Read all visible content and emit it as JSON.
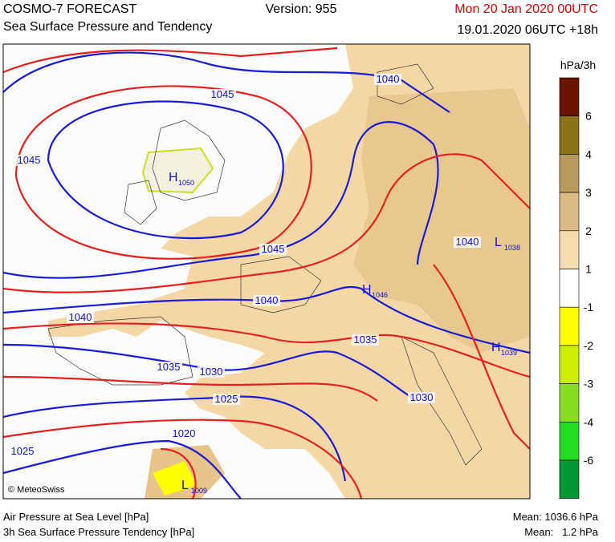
{
  "header": {
    "title": "COSMO-7 FORECAST",
    "subtitle": "Sea Surface Pressure and Tendency",
    "version": "Version: 955",
    "valid_time": "Mon 20 Jan 2020 00UTC",
    "run_time": "19.01.2020 06UTC +18h"
  },
  "map": {
    "isobar_labels": [
      "1040",
      "1045",
      "1045",
      "1045",
      "1040",
      "1040",
      "1040",
      "1035",
      "1035",
      "1030",
      "1025",
      "1030",
      "1020",
      "1025"
    ],
    "centers": [
      {
        "letter": "H",
        "value": "1050"
      },
      {
        "letter": "L",
        "value": "1038"
      },
      {
        "letter": "H",
        "value": "1046"
      },
      {
        "letter": "H",
        "value": "1039"
      },
      {
        "letter": "L",
        "value": "1009"
      }
    ],
    "copyright": "© MeteoSwiss"
  },
  "colorbar": {
    "unit": "hPa/3h",
    "labels": [
      "6",
      "4",
      "3",
      "2",
      "1",
      "-1",
      "-2",
      "-3",
      "-4",
      "-6"
    ],
    "colors": [
      "#6b1200",
      "#8c7318",
      "#b89a5c",
      "#dab982",
      "#f6dcac",
      "#ffffff",
      "#ffff00",
      "#ccee00",
      "#88dd22",
      "#22dd22",
      "#009933"
    ]
  },
  "footer": {
    "line1": "Air Pressure at Sea Level [hPa]",
    "line2": "3h Sea Surface Pressure Tendency [hPa]",
    "mean1": "Mean: 1036.6 hPa",
    "mean2": "Mean:   1.2 hPa"
  }
}
